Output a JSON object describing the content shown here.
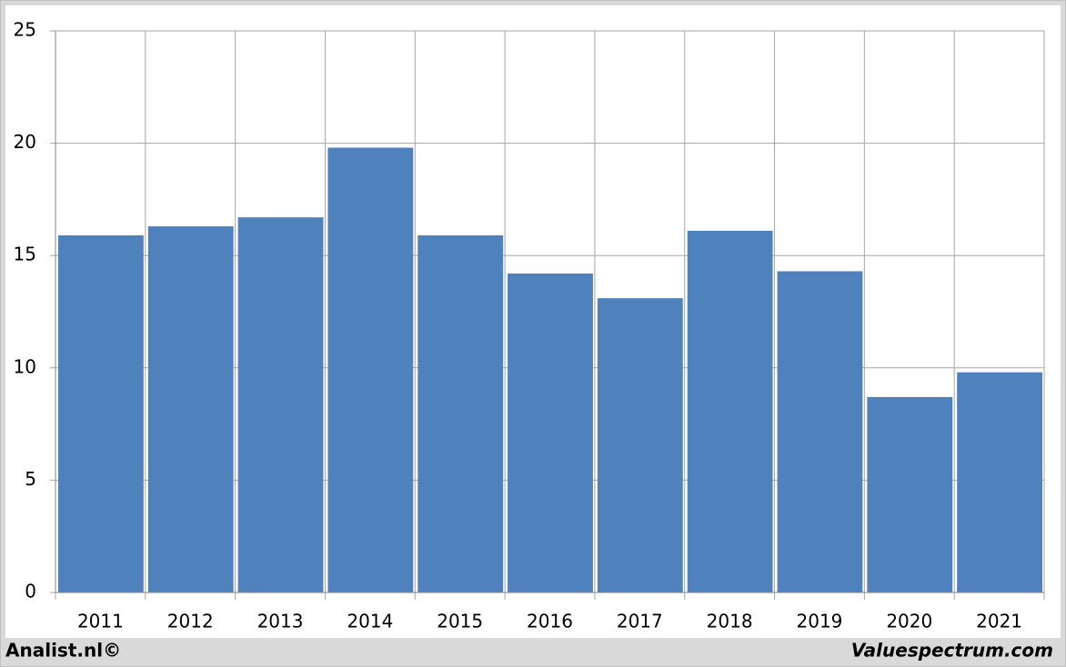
{
  "chart_data": {
    "type": "bar",
    "categories": [
      "2011",
      "2012",
      "2013",
      "2014",
      "2015",
      "2016",
      "2017",
      "2018",
      "2019",
      "2020",
      "2021"
    ],
    "values": [
      15.9,
      16.3,
      16.7,
      19.8,
      15.9,
      14.2,
      13.1,
      16.1,
      14.3,
      8.7,
      9.8
    ],
    "color": "#4f81bd",
    "ylim": [
      0,
      25
    ],
    "yticks": [
      0,
      5,
      10,
      15,
      20,
      25
    ],
    "grid": true
  },
  "footer": {
    "left": "Analist.nl©",
    "right": "Valuespectrum.com"
  }
}
